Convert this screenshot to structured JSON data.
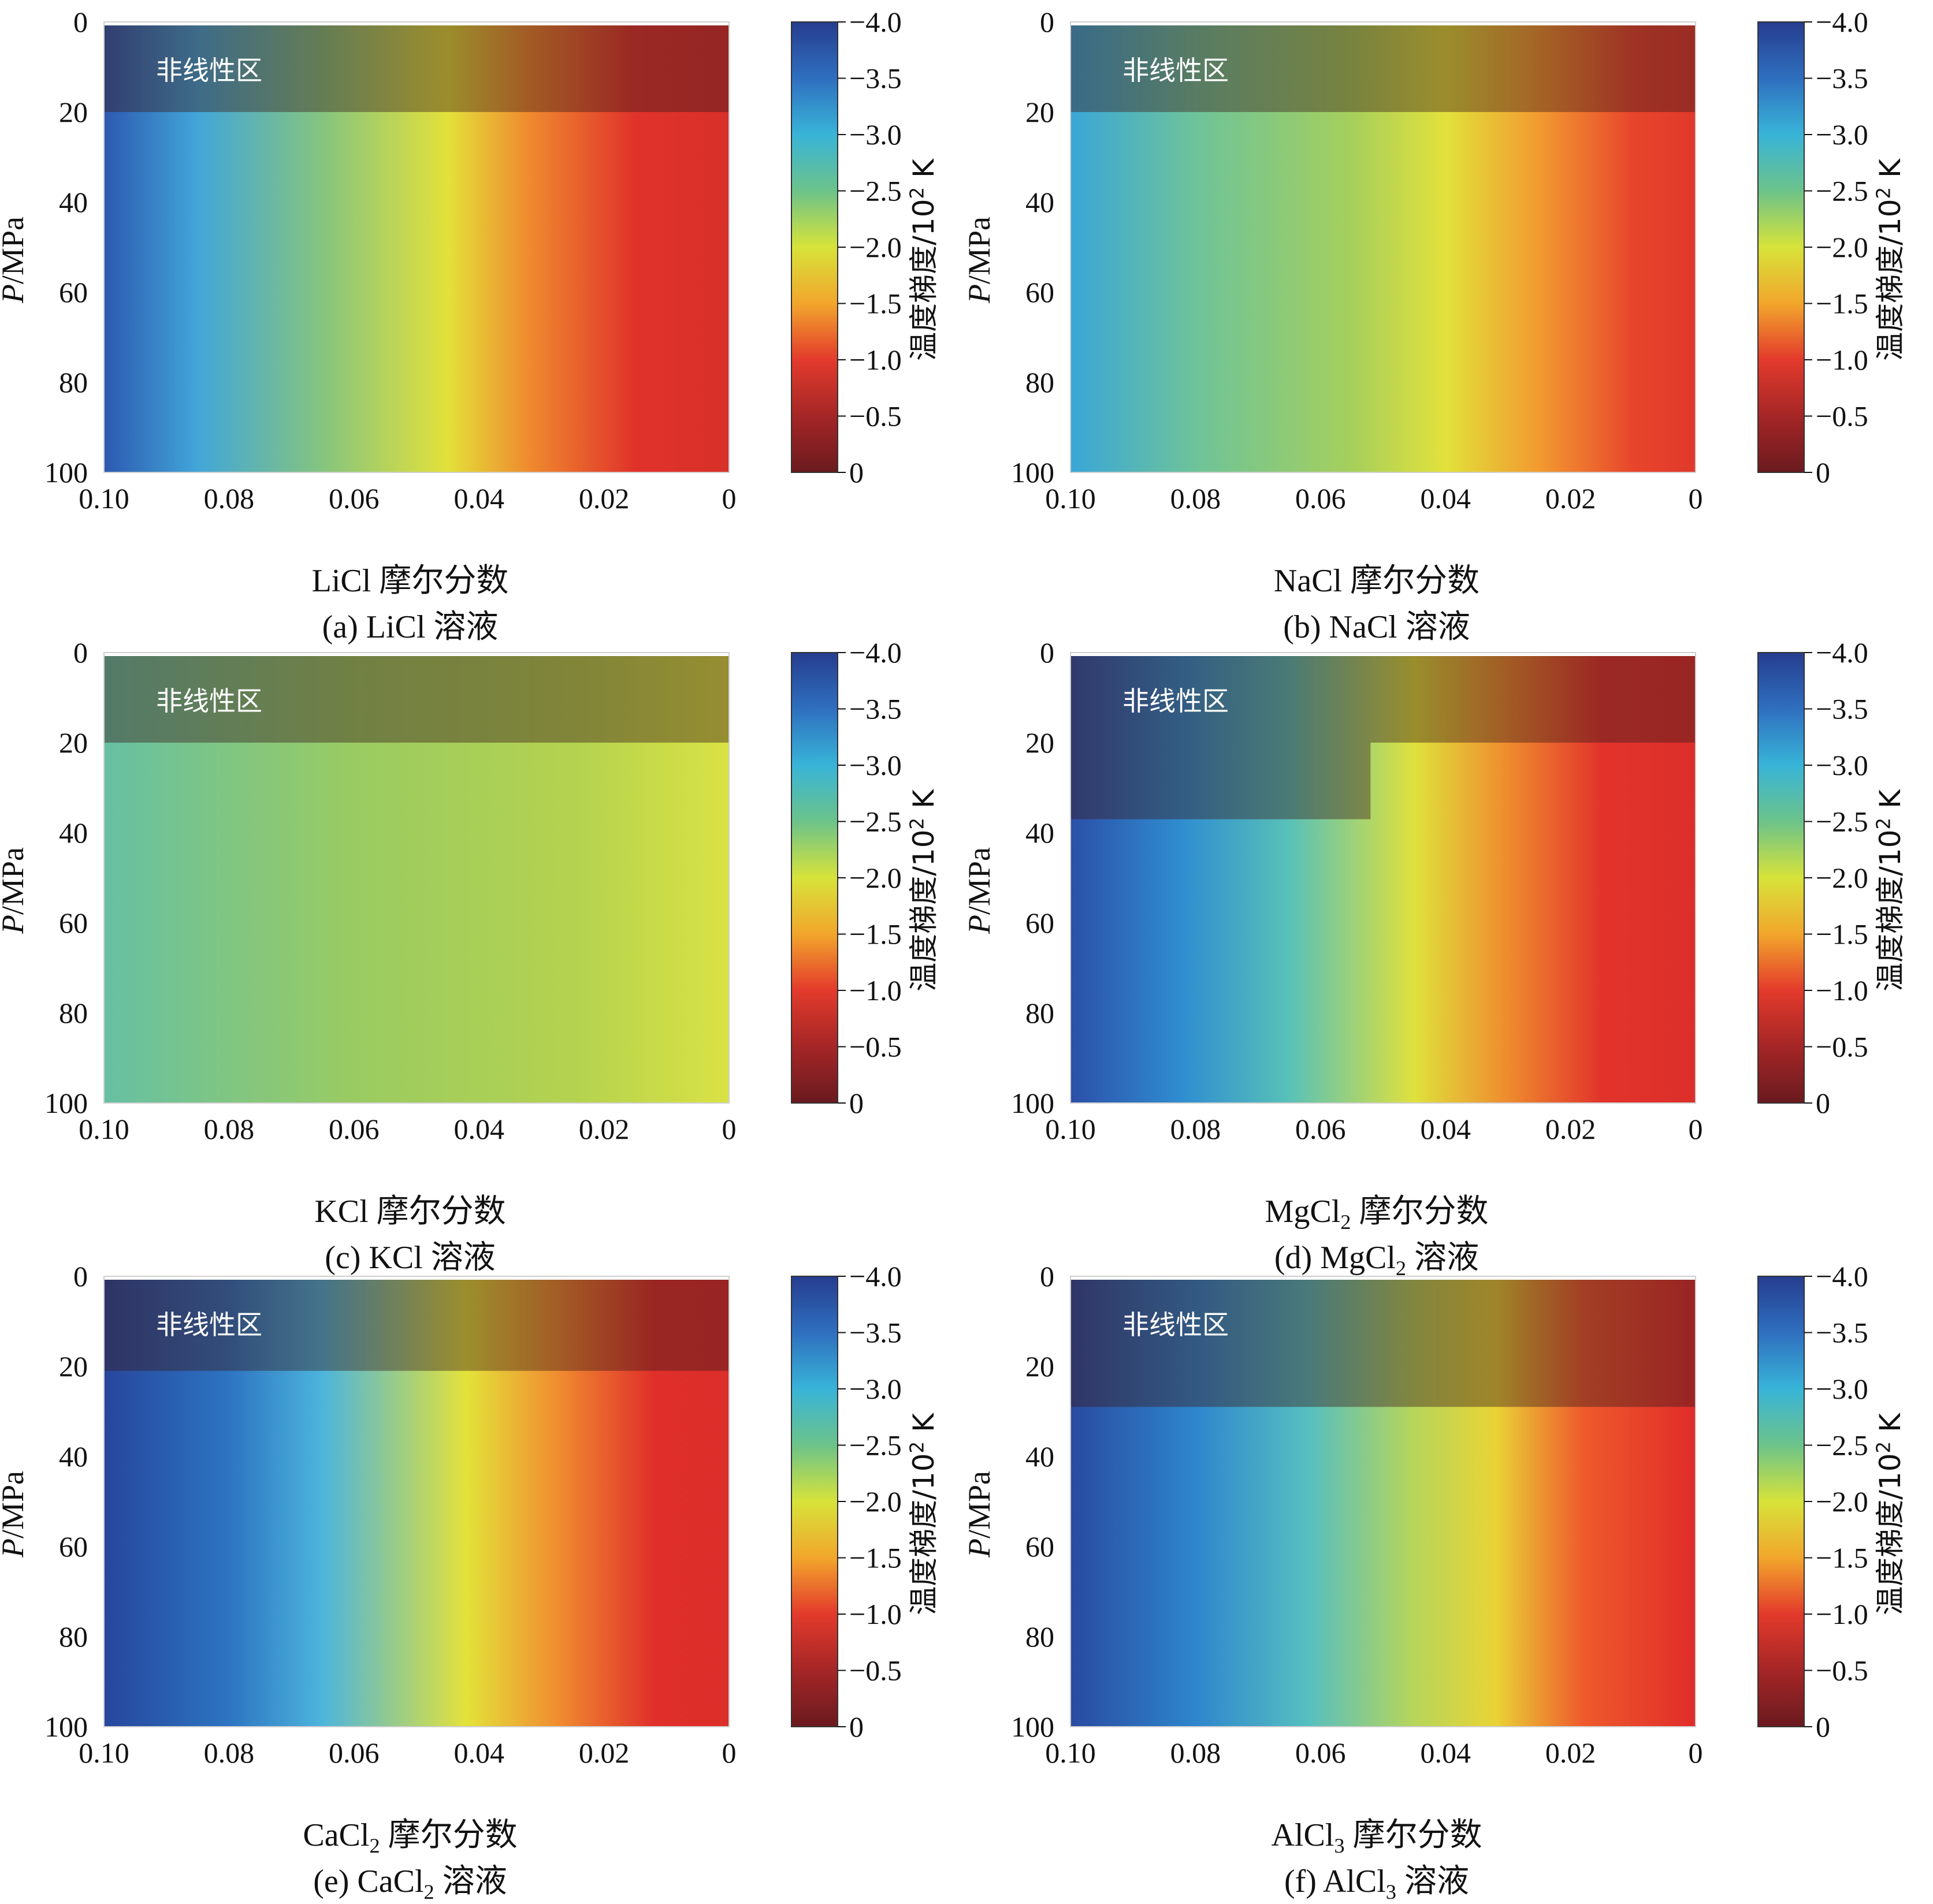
{
  "labels": {
    "y_axis_italic": "P",
    "y_axis_unit": "/MPa",
    "nonlinear_region": "非线性区",
    "colorbar_label": "温度梯度/10",
    "colorbar_sup": "2",
    "colorbar_unit": " K",
    "x_suffix": "摩尔分数",
    "caption_suffix": "溶液"
  },
  "chart_data": [
    {
      "type": "heatmap",
      "id": "a",
      "caption_prefix": "(a)",
      "salt": "LiCl",
      "salt_sub": "",
      "x_ticks": [
        "0.10",
        "0.08",
        "0.06",
        "0.04",
        "0.02",
        "0"
      ],
      "y_ticks": [
        "0",
        "20",
        "40",
        "60",
        "80",
        "100"
      ],
      "xlim": [
        0.1,
        0
      ],
      "ylim": [
        0,
        100
      ],
      "colorbar_ticks": [
        "−4.0",
        "−3.5",
        "−3.0",
        "−2.5",
        "−2.0",
        "−1.5",
        "−1.0",
        "−0.5",
        "0"
      ],
      "colorbar_range": [
        -4.0,
        0
      ],
      "nonlinear_region": {
        "pressure_max_MPa": 20
      }
    },
    {
      "type": "heatmap",
      "id": "b",
      "caption_prefix": "(b)",
      "salt": "NaCl",
      "salt_sub": "",
      "x_ticks": [
        "0.10",
        "0.08",
        "0.06",
        "0.04",
        "0.02",
        "0"
      ],
      "y_ticks": [
        "0",
        "20",
        "40",
        "60",
        "80",
        "100"
      ],
      "xlim": [
        0.1,
        0
      ],
      "ylim": [
        0,
        100
      ],
      "colorbar_ticks": [
        "−4.0",
        "−3.5",
        "−3.0",
        "−2.5",
        "−2.0",
        "−1.5",
        "−1.0",
        "−0.5",
        "0"
      ],
      "colorbar_range": [
        -4.0,
        0
      ],
      "nonlinear_region": {
        "pressure_max_MPa": 20
      }
    },
    {
      "type": "heatmap",
      "id": "c",
      "caption_prefix": "(c)",
      "salt": "KCl",
      "salt_sub": "",
      "x_ticks": [
        "0.10",
        "0.08",
        "0.06",
        "0.04",
        "0.02",
        "0"
      ],
      "y_ticks": [
        "0",
        "20",
        "40",
        "60",
        "80",
        "100"
      ],
      "xlim": [
        0.1,
        0
      ],
      "ylim": [
        0,
        100
      ],
      "colorbar_ticks": [
        "−4.0",
        "−3.5",
        "−3.0",
        "−2.5",
        "−2.0",
        "−1.5",
        "−1.0",
        "−0.5",
        "0"
      ],
      "colorbar_range": [
        -4.0,
        0
      ],
      "nonlinear_region": {
        "pressure_max_MPa": 20
      }
    },
    {
      "type": "heatmap",
      "id": "d",
      "caption_prefix": "(d)",
      "salt": "MgCl",
      "salt_sub": "2",
      "x_ticks": [
        "0.10",
        "0.08",
        "0.06",
        "0.04",
        "0.02",
        "0"
      ],
      "y_ticks": [
        "0",
        "20",
        "40",
        "60",
        "80",
        "100"
      ],
      "xlim": [
        0.1,
        0
      ],
      "ylim": [
        0,
        100
      ],
      "colorbar_ticks": [
        "−4.0",
        "−3.5",
        "−3.0",
        "−2.5",
        "−2.0",
        "−1.5",
        "−1.0",
        "−0.5",
        "0"
      ],
      "colorbar_range": [
        -4.0,
        0
      ],
      "nonlinear_region": {
        "pressure_max_MPa": 20,
        "extended_pressure_max_MPa": 37,
        "extended_x_min": 0.052
      }
    },
    {
      "type": "heatmap",
      "id": "e",
      "caption_prefix": "(e)",
      "salt": "CaCl",
      "salt_sub": "2",
      "x_ticks": [
        "0.10",
        "0.08",
        "0.06",
        "0.04",
        "0.02",
        "0"
      ],
      "y_ticks": [
        "0",
        "20",
        "40",
        "60",
        "80",
        "100"
      ],
      "xlim": [
        0.1,
        0
      ],
      "ylim": [
        0,
        100
      ],
      "colorbar_ticks": [
        "−4.0",
        "−3.5",
        "−3.0",
        "−2.5",
        "−2.0",
        "−1.5",
        "−1.0",
        "−0.5",
        "0"
      ],
      "colorbar_range": [
        -4.0,
        0
      ],
      "nonlinear_region": {
        "pressure_max_MPa": 21
      }
    },
    {
      "type": "heatmap",
      "id": "f",
      "caption_prefix": "(f)",
      "salt": "AlCl",
      "salt_sub": "3",
      "x_ticks": [
        "0.10",
        "0.08",
        "0.06",
        "0.04",
        "0.02",
        "0"
      ],
      "y_ticks": [
        "0",
        "20",
        "40",
        "60",
        "80",
        "100"
      ],
      "xlim": [
        0.1,
        0
      ],
      "ylim": [
        0,
        100
      ],
      "colorbar_ticks": [
        "−4.0",
        "−3.5",
        "−3.0",
        "−2.5",
        "−2.0",
        "−1.5",
        "−1.0",
        "−0.5",
        "0"
      ],
      "colorbar_range": [
        -4.0,
        0
      ],
      "nonlinear_region": {
        "pressure_max_MPa": 29
      }
    }
  ]
}
